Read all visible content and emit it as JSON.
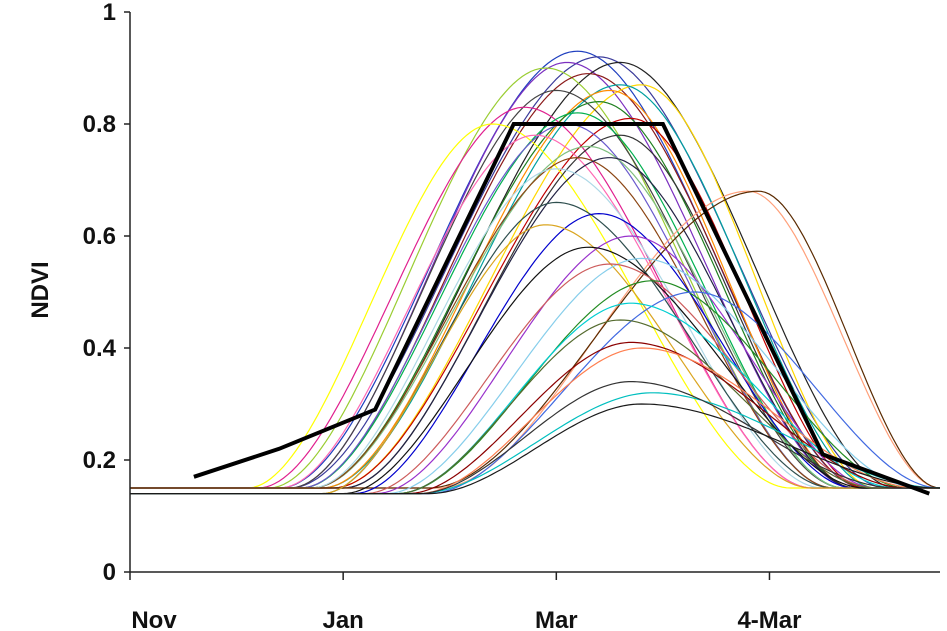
{
  "chart_data": {
    "type": "line",
    "title": "",
    "xlabel": "",
    "ylabel": "NDVI",
    "ylim": [
      0,
      1
    ],
    "y_ticks": [
      "0",
      "0.2",
      "0.4",
      "0.6",
      "0.8",
      "1"
    ],
    "x_ticks": [
      "Nov",
      "Jan",
      "Mar",
      "4-Mar"
    ],
    "x_tick_positions": [
      0,
      2,
      4,
      6
    ],
    "xlim": [
      0,
      7.6
    ],
    "grid": false,
    "legend": "none",
    "reference_series": {
      "color": "#000000",
      "points": [
        [
          0.6,
          0.17
        ],
        [
          1.4,
          0.22
        ],
        [
          2.3,
          0.29
        ],
        [
          3.6,
          0.8
        ],
        [
          5.0,
          0.8
        ],
        [
          6.5,
          0.21
        ],
        [
          7.5,
          0.14
        ]
      ]
    },
    "series": [
      {
        "color": "#1f3fbf",
        "peak_x": 4.2,
        "peak": 0.93,
        "start": 0.15,
        "rise": 2.9,
        "fall": 5.9,
        "end": 0.15
      },
      {
        "color": "#3b3b9b",
        "peak_x": 4.4,
        "peak": 0.92,
        "start": 0.15,
        "rise": 3.0,
        "fall": 6.1,
        "end": 0.15
      },
      {
        "color": "#7b2fbf",
        "peak_x": 4.1,
        "peak": 0.91,
        "start": 0.15,
        "rise": 3.0,
        "fall": 5.8,
        "end": 0.15
      },
      {
        "color": "#222222",
        "peak_x": 4.6,
        "peak": 0.91,
        "start": 0.15,
        "rise": 3.2,
        "fall": 6.2,
        "end": 0.15
      },
      {
        "color": "#9acd32",
        "peak_x": 3.9,
        "peak": 0.9,
        "start": 0.15,
        "rise": 2.8,
        "fall": 5.6,
        "end": 0.15
      },
      {
        "color": "#8b1a1a",
        "peak_x": 4.3,
        "peak": 0.89,
        "start": 0.15,
        "rise": 3.1,
        "fall": 5.9,
        "end": 0.15
      },
      {
        "color": "#ffd700",
        "peak_x": 4.8,
        "peak": 0.87,
        "start": 0.15,
        "rise": 3.4,
        "fall": 6.0,
        "end": 0.15
      },
      {
        "color": "#00a0a0",
        "peak_x": 4.6,
        "peak": 0.87,
        "start": 0.15,
        "rise": 3.3,
        "fall": 6.0,
        "end": 0.15
      },
      {
        "color": "#ff8c00",
        "peak_x": 4.5,
        "peak": 0.86,
        "start": 0.15,
        "rise": 3.3,
        "fall": 5.8,
        "end": 0.15
      },
      {
        "color": "#444444",
        "peak_x": 4.0,
        "peak": 0.86,
        "start": 0.15,
        "rise": 3.0,
        "fall": 5.7,
        "end": 0.15
      },
      {
        "color": "#1f7f1f",
        "peak_x": 4.4,
        "peak": 0.84,
        "start": 0.15,
        "rise": 3.2,
        "fall": 5.8,
        "end": 0.15
      },
      {
        "color": "#e0208f",
        "peak_x": 3.7,
        "peak": 0.83,
        "start": 0.15,
        "rise": 2.7,
        "fall": 5.4,
        "end": 0.15
      },
      {
        "color": "#00b050",
        "peak_x": 4.2,
        "peak": 0.82,
        "start": 0.15,
        "rise": 3.1,
        "fall": 5.7,
        "end": 0.15
      },
      {
        "color": "#c00000",
        "peak_x": 4.7,
        "peak": 0.81,
        "start": 0.15,
        "rise": 3.4,
        "fall": 5.9,
        "end": 0.15
      },
      {
        "color": "#ffff00",
        "peak_x": 3.4,
        "peak": 0.8,
        "start": 0.15,
        "rise": 2.6,
        "fall": 5.2,
        "end": 0.15
      },
      {
        "color": "#6a5acd",
        "peak_x": 4.1,
        "peak": 0.8,
        "start": 0.15,
        "rise": 3.1,
        "fall": 5.6,
        "end": 0.15
      },
      {
        "color": "#333333",
        "peak_x": 4.6,
        "peak": 0.78,
        "start": 0.15,
        "rise": 3.5,
        "fall": 5.8,
        "end": 0.15
      },
      {
        "color": "#ff69b4",
        "peak_x": 3.8,
        "peak": 0.78,
        "start": 0.15,
        "rise": 2.9,
        "fall": 5.4,
        "end": 0.15
      },
      {
        "color": "#7fbf7f",
        "peak_x": 4.3,
        "peak": 0.76,
        "start": 0.15,
        "rise": 3.2,
        "fall": 5.7,
        "end": 0.15
      },
      {
        "color": "#8b4513",
        "peak_x": 4.2,
        "peak": 0.74,
        "start": 0.15,
        "rise": 3.2,
        "fall": 5.6,
        "end": 0.15
      },
      {
        "color": "#222244",
        "peak_x": 4.5,
        "peak": 0.74,
        "start": 0.15,
        "rise": 3.5,
        "fall": 5.8,
        "end": 0.15
      },
      {
        "color": "#add8e6",
        "peak_x": 4.0,
        "peak": 0.72,
        "start": 0.15,
        "rise": 3.2,
        "fall": 5.5,
        "end": 0.15
      },
      {
        "color": "#ffa07a",
        "peak_x": 5.8,
        "peak": 0.68,
        "start": 0.15,
        "rise": 4.4,
        "fall": 7.0,
        "end": 0.15
      },
      {
        "color": "#5a2a00",
        "peak_x": 5.9,
        "peak": 0.68,
        "start": 0.15,
        "rise": 4.3,
        "fall": 7.0,
        "end": 0.15
      },
      {
        "color": "#2f4f4f",
        "peak_x": 4.0,
        "peak": 0.66,
        "start": 0.14,
        "rise": 3.3,
        "fall": 5.6,
        "end": 0.15
      },
      {
        "color": "#0000cd",
        "peak_x": 4.4,
        "peak": 0.64,
        "start": 0.14,
        "rise": 3.6,
        "fall": 5.8,
        "end": 0.15
      },
      {
        "color": "#daa520",
        "peak_x": 3.9,
        "peak": 0.62,
        "start": 0.14,
        "rise": 3.3,
        "fall": 5.4,
        "end": 0.15
      },
      {
        "color": "#9932cc",
        "peak_x": 4.7,
        "peak": 0.6,
        "start": 0.14,
        "rise": 3.8,
        "fall": 6.0,
        "end": 0.15
      },
      {
        "color": "#111111",
        "peak_x": 4.3,
        "peak": 0.58,
        "start": 0.14,
        "rise": 3.5,
        "fall": 5.9,
        "end": 0.15
      },
      {
        "color": "#87ceeb",
        "peak_x": 4.8,
        "peak": 0.56,
        "start": 0.14,
        "rise": 3.9,
        "fall": 6.4,
        "end": 0.15
      },
      {
        "color": "#cd5c5c",
        "peak_x": 4.5,
        "peak": 0.55,
        "start": 0.14,
        "rise": 3.7,
        "fall": 6.0,
        "end": 0.15
      },
      {
        "color": "#228b22",
        "peak_x": 4.9,
        "peak": 0.52,
        "start": 0.14,
        "rise": 4.0,
        "fall": 6.3,
        "end": 0.15
      },
      {
        "color": "#4169e1",
        "peak_x": 5.3,
        "peak": 0.5,
        "start": 0.14,
        "rise": 4.3,
        "fall": 6.6,
        "end": 0.15
      },
      {
        "color": "#00ced1",
        "peak_x": 4.7,
        "peak": 0.48,
        "start": 0.14,
        "rise": 4.0,
        "fall": 6.2,
        "end": 0.15
      },
      {
        "color": "#556b2f",
        "peak_x": 4.6,
        "peak": 0.45,
        "start": 0.14,
        "rise": 4.0,
        "fall": 6.0,
        "end": 0.15
      },
      {
        "color": "#8b0000",
        "peak_x": 4.7,
        "peak": 0.41,
        "start": 0.14,
        "rise": 4.1,
        "fall": 6.3,
        "end": 0.15
      },
      {
        "color": "#ff7f50",
        "peak_x": 4.8,
        "peak": 0.4,
        "start": 0.14,
        "rise": 4.2,
        "fall": 6.4,
        "end": 0.15
      },
      {
        "color": "#00bfbf",
        "peak_x": 4.9,
        "peak": 0.32,
        "start": 0.14,
        "rise": 4.2,
        "fall": 6.6,
        "end": 0.15
      },
      {
        "color": "#333333",
        "peak_x": 4.7,
        "peak": 0.34,
        "start": 0.14,
        "rise": 4.2,
        "fall": 6.2,
        "end": 0.15
      },
      {
        "color": "#1a1a1a",
        "peak_x": 4.8,
        "peak": 0.3,
        "start": 0.14,
        "rise": 4.3,
        "fall": 6.8,
        "end": 0.15
      }
    ]
  }
}
